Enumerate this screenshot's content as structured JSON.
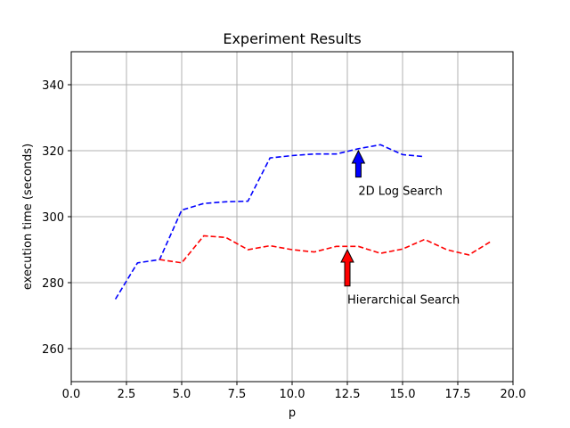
{
  "chart_data": {
    "type": "line",
    "title": "Experiment Results",
    "xlabel": "p",
    "ylabel": "execution time (seconds)",
    "xlim": [
      0,
      20
    ],
    "ylim": [
      250,
      350
    ],
    "xticks": [
      0,
      2.5,
      5,
      7.5,
      10,
      12.5,
      15,
      17.5,
      20
    ],
    "xtick_labels": [
      "0.0",
      "2.5",
      "5.0",
      "7.5",
      "10.0",
      "12.5",
      "15.0",
      "17.5",
      "20.0"
    ],
    "yticks": [
      260,
      280,
      300,
      320,
      340
    ],
    "ytick_labels": [
      "260",
      "280",
      "300",
      "320",
      "340"
    ],
    "grid": true,
    "series": [
      {
        "color": "#0000ff",
        "linestyle": "dashed",
        "x": [
          2,
          3,
          4,
          5,
          6,
          7,
          8,
          9,
          10,
          11,
          12,
          13,
          14,
          15,
          16
        ],
        "y": [
          275,
          286,
          287,
          302,
          304,
          304.5,
          304.7,
          317.8,
          318.5,
          319,
          319,
          320.6,
          321.8,
          318.8,
          318.2
        ]
      },
      {
        "color": "#ff0000",
        "linestyle": "dashed",
        "x": [
          4,
          5,
          6,
          7,
          8,
          9,
          10,
          11,
          12,
          13,
          14,
          15,
          16,
          17,
          18,
          19
        ],
        "y": [
          287,
          286,
          294.2,
          293.7,
          290,
          291.2,
          290,
          289.3,
          291,
          291,
          288.9,
          290.2,
          293.1,
          290,
          288.4,
          292.5
        ]
      }
    ],
    "annotations": [
      {
        "text": "2D Log Search",
        "x": 13,
        "y": 308,
        "arrow_tip": [
          13,
          320
        ],
        "arrow_base": [
          13,
          312
        ],
        "arrow_color": "#0000ff"
      },
      {
        "text": "Hierarchical Search",
        "x": 12.5,
        "y": 275,
        "arrow_tip": [
          12.5,
          290
        ],
        "arrow_base": [
          12.5,
          279
        ],
        "arrow_color": "#ff0000"
      }
    ]
  }
}
